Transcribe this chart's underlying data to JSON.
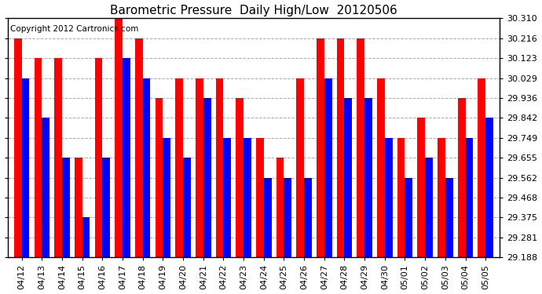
{
  "title": "Barometric Pressure  Daily High/Low  20120506",
  "copyright": "Copyright 2012 Cartronics.com",
  "dates": [
    "04/12",
    "04/13",
    "04/14",
    "04/15",
    "04/16",
    "04/17",
    "04/18",
    "04/19",
    "04/20",
    "04/21",
    "04/22",
    "04/23",
    "04/24",
    "04/25",
    "04/26",
    "04/27",
    "04/28",
    "04/29",
    "04/30",
    "05/01",
    "05/02",
    "05/03",
    "05/04",
    "05/05"
  ],
  "highs": [
    30.216,
    30.123,
    30.123,
    29.655,
    30.123,
    30.31,
    30.216,
    29.936,
    30.029,
    30.029,
    30.029,
    29.936,
    29.749,
    29.655,
    30.029,
    30.216,
    30.216,
    30.216,
    30.029,
    29.749,
    29.842,
    29.749,
    29.936,
    30.029
  ],
  "lows": [
    30.029,
    29.842,
    29.655,
    29.375,
    29.655,
    30.123,
    30.029,
    29.749,
    29.655,
    29.936,
    29.749,
    29.749,
    29.562,
    29.562,
    29.562,
    30.029,
    29.936,
    29.936,
    29.749,
    29.562,
    29.655,
    29.562,
    29.749,
    29.842
  ],
  "ymin": 29.188,
  "ymax": 30.31,
  "yticks": [
    29.188,
    29.281,
    29.375,
    29.468,
    29.562,
    29.655,
    29.749,
    29.842,
    29.936,
    30.029,
    30.123,
    30.216,
    30.31
  ],
  "bar_color_high": "#ff0000",
  "bar_color_low": "#0000ff",
  "background_color": "#ffffff",
  "grid_color": "#aaaaaa",
  "title_fontsize": 11,
  "copyright_fontsize": 7.5,
  "tick_fontsize": 8
}
